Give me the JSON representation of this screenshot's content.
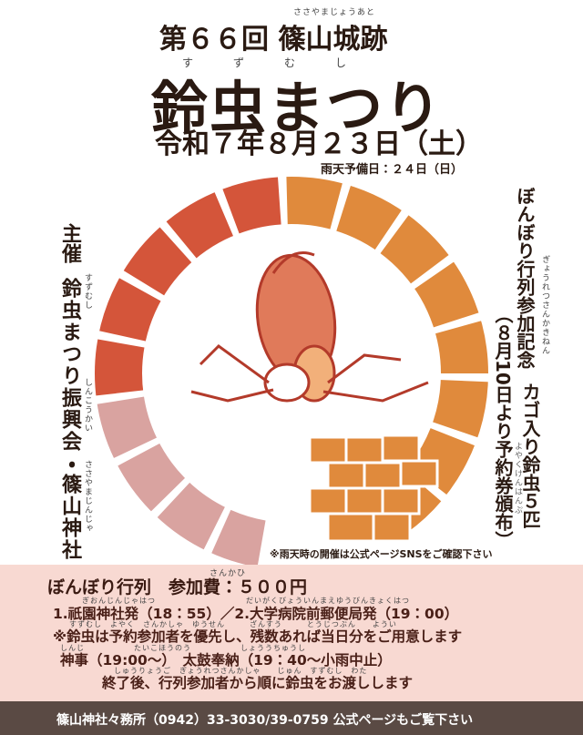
{
  "header": {
    "edition_ruby": "ささやまじょうあと",
    "edition": "第６６回 篠山城跡",
    "title_ruby": "す　ず　む　し",
    "title": "鈴虫まつり",
    "date": "令和７年８月２３日（土）",
    "rain_date": "雨天予備日：２４日（日）"
  },
  "organizer": {
    "label": "主催",
    "name_ruby": "すずむし",
    "name": "鈴虫まつり振興会・",
    "name_ruby2": "しんこうかい",
    "shrine": "篠山神社",
    "shrine_ruby": "ささやまじんじゃ"
  },
  "souvenir": {
    "title": "ぼんぼり行列参加記念",
    "title_ruby": "ぎょうれつさんかきねん",
    "item": "カゴ入り鈴虫５匹",
    "note": "（８月10日より予約券頒布）",
    "note_ruby": "よやくけんはんぷ"
  },
  "rain_note": "※雨天時の開催は公式ページSNSをご確認下さい",
  "details": {
    "lines": [
      {
        "ruby": "さんかひ",
        "text": "ぼんぼり行列　参加費：５００円"
      },
      {
        "ruby": "ぎおんじんじゃはつ　　　　　　　　　　　だいがくびょういんまえゆうびんきょくはつ",
        "text": "1.祇園神社発（18：55）／2.大学病院前郵便局発（19：00）"
      },
      {
        "ruby": "すずむし　よやく　さんかしゃ　ゆうせん　　　ざんすう　　　とうじつぶん　　ようい",
        "text": "※鈴虫は予約参加者を優先し、残数あれば当日分をご用意します"
      },
      {
        "ruby": "しんじ　　　　　　たいこほうのう　　　　　　しょううちゅうし",
        "text": "神事（19:00～）　太鼓奉納（19：40～小雨中止）"
      },
      {
        "ruby": "しゅうりょうご　ぎょうれつさんかしゃ　　じゅん　すずむし　わた",
        "text": "終了後、行列参加者から順に鈴虫をお渡しします"
      }
    ]
  },
  "footer": "篠山神社々務所（0942）33-3030/39-0759 公式ページもご覧下さい"
}
